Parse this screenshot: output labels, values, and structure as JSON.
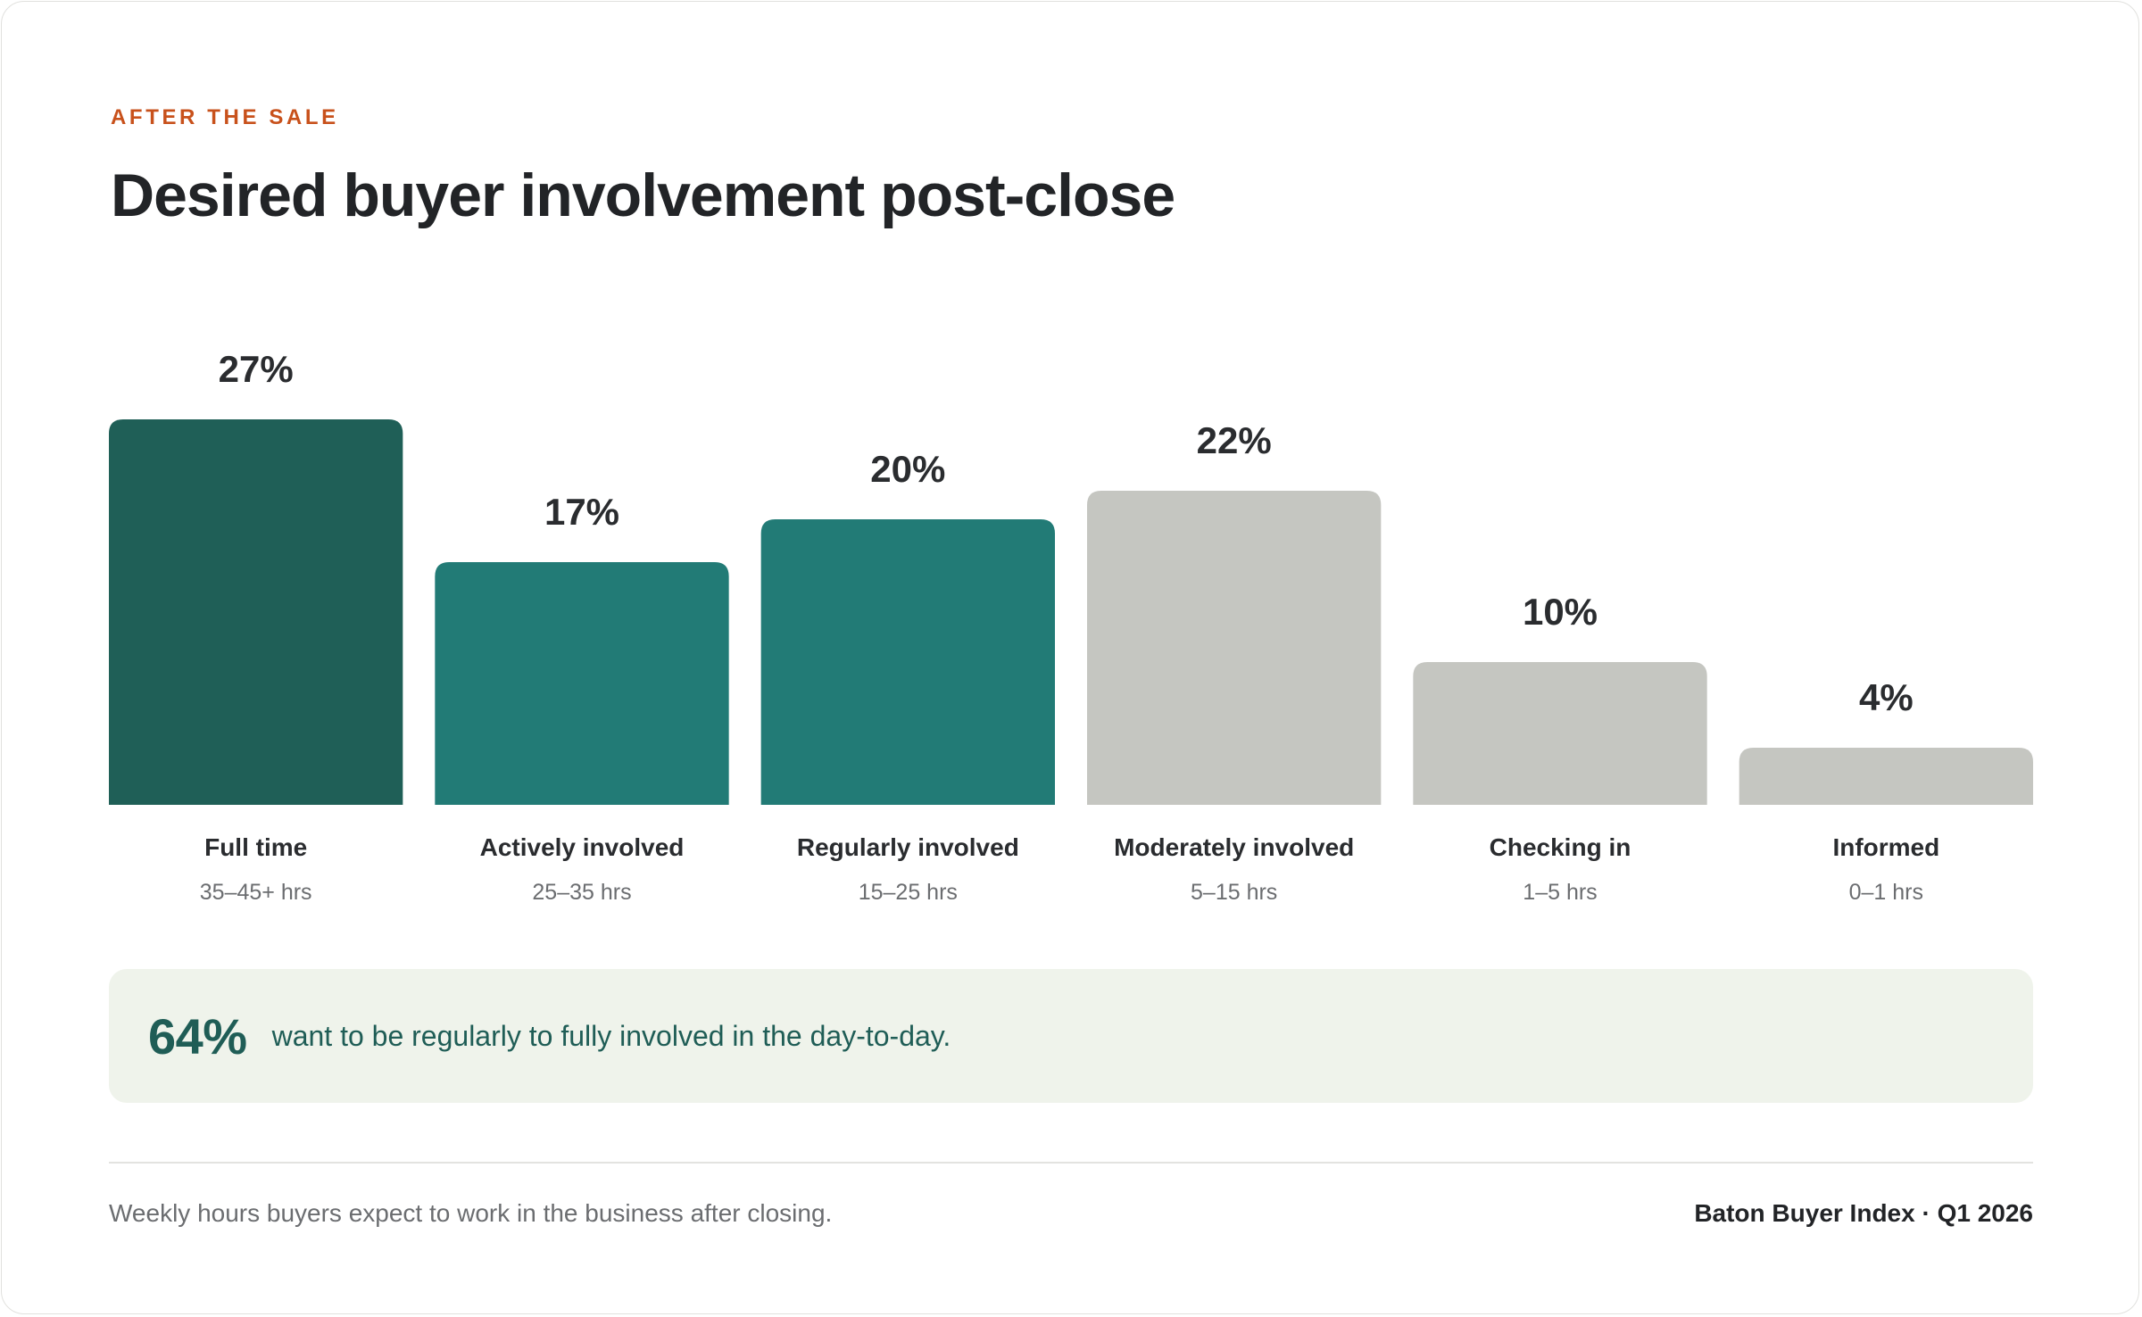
{
  "header": {
    "eyebrow": "AFTER THE SALE",
    "title": "Desired buyer involvement post-close"
  },
  "chart_data": {
    "type": "bar",
    "categories": [
      "Full time",
      "Actively involved",
      "Regularly involved",
      "Moderately involved",
      "Checking in",
      "Informed"
    ],
    "sublabels": [
      "35–45+ hrs",
      "25–35 hrs",
      "15–25 hrs",
      "5–15 hrs",
      "1–5 hrs",
      "0–1 hrs"
    ],
    "values": [
      27,
      17,
      20,
      22,
      10,
      4
    ],
    "value_labels": [
      "27%",
      "17%",
      "20%",
      "22%",
      "10%",
      "4%"
    ],
    "colors": [
      "#1f5f57",
      "#227b76",
      "#227b76",
      "#c5c6c1",
      "#c5c6c1",
      "#c5c6c1"
    ],
    "unit": "%",
    "ylim": [
      0,
      27
    ],
    "grid": false,
    "legend": "none"
  },
  "callout": {
    "value": "64%",
    "text": "want to be regularly to fully involved in the day-to-day."
  },
  "footer": {
    "note": "Weekly hours buyers expect to work in the business after closing.",
    "source": "Baton Buyer Index · Q1 2026"
  }
}
